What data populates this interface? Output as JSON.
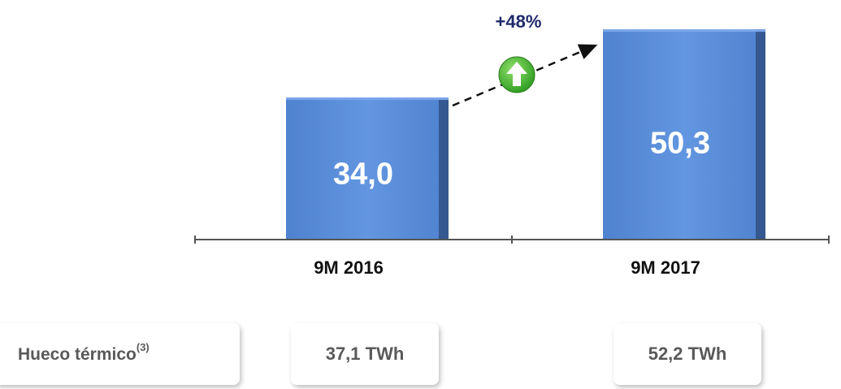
{
  "chart_data": {
    "type": "bar",
    "categories": [
      "9M 2016",
      "9M 2017"
    ],
    "values": [
      34.0,
      50.3
    ],
    "value_labels": [
      "34,0",
      "50,3"
    ],
    "color": "#5a8fdc",
    "ylim": [
      0,
      55
    ],
    "annotation": "+48%",
    "footer_row": {
      "label": "Hueco térmico",
      "note": "(3)",
      "cells": [
        "37,1 TWh",
        "52,2 TWh"
      ]
    }
  }
}
